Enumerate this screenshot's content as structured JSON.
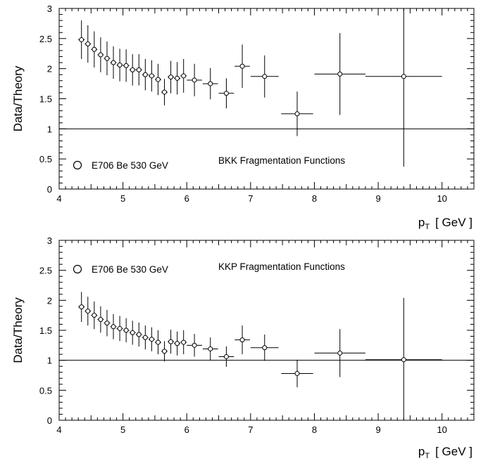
{
  "chart_data": [
    {
      "type": "scatter",
      "title": "",
      "xlabel": "",
      "ylabel": "Data/Theory",
      "x_unit_label": "p",
      "x_unit_sub": "T",
      "x_unit_text": "[ GeV ]",
      "xlim": [
        4,
        10.5
      ],
      "ylim": [
        0,
        3
      ],
      "x_ticks": [
        "4",
        "5",
        "6",
        "7",
        "8",
        "9",
        "10"
      ],
      "y_ticks": [
        "0",
        "0.5",
        "1",
        "1.5",
        "2",
        "2.5",
        "3"
      ],
      "reference_line": 1,
      "legend_label": "E706 Be 530 GeV",
      "annotation": "BKK Fragmentation Functions",
      "series": [
        {
          "points": [
            {
              "x": 4.35,
              "y": 2.48,
              "yerr": 0.32,
              "xerr": 0.05
            },
            {
              "x": 4.45,
              "y": 2.41,
              "yerr": 0.31,
              "xerr": 0.05
            },
            {
              "x": 4.55,
              "y": 2.32,
              "yerr": 0.3,
              "xerr": 0.05
            },
            {
              "x": 4.65,
              "y": 2.23,
              "yerr": 0.29,
              "xerr": 0.05
            },
            {
              "x": 4.75,
              "y": 2.17,
              "yerr": 0.28,
              "xerr": 0.05
            },
            {
              "x": 4.85,
              "y": 2.1,
              "yerr": 0.27,
              "xerr": 0.05
            },
            {
              "x": 4.95,
              "y": 2.06,
              "yerr": 0.27,
              "xerr": 0.05
            },
            {
              "x": 5.05,
              "y": 2.05,
              "yerr": 0.27,
              "xerr": 0.05
            },
            {
              "x": 5.15,
              "y": 1.98,
              "yerr": 0.26,
              "xerr": 0.05
            },
            {
              "x": 5.25,
              "y": 1.98,
              "yerr": 0.26,
              "xerr": 0.05
            },
            {
              "x": 5.35,
              "y": 1.9,
              "yerr": 0.26,
              "xerr": 0.05
            },
            {
              "x": 5.45,
              "y": 1.88,
              "yerr": 0.26,
              "xerr": 0.05
            },
            {
              "x": 5.55,
              "y": 1.82,
              "yerr": 0.26,
              "xerr": 0.05
            },
            {
              "x": 5.65,
              "y": 1.61,
              "yerr": 0.22,
              "xerr": 0.05
            },
            {
              "x": 5.75,
              "y": 1.86,
              "yerr": 0.27,
              "xerr": 0.05
            },
            {
              "x": 5.85,
              "y": 1.84,
              "yerr": 0.27,
              "xerr": 0.05
            },
            {
              "x": 5.95,
              "y": 1.88,
              "yerr": 0.28,
              "xerr": 0.05
            },
            {
              "x": 6.12,
              "y": 1.81,
              "yerr": 0.27,
              "xerr": 0.12
            },
            {
              "x": 6.37,
              "y": 1.75,
              "yerr": 0.26,
              "xerr": 0.12
            },
            {
              "x": 6.62,
              "y": 1.59,
              "yerr": 0.25,
              "xerr": 0.12
            },
            {
              "x": 6.87,
              "y": 2.04,
              "yerr": 0.36,
              "xerr": 0.12
            },
            {
              "x": 7.22,
              "y": 1.87,
              "yerr": 0.35,
              "xerr": 0.22
            },
            {
              "x": 7.73,
              "y": 1.25,
              "yerr": 0.37,
              "xerr": 0.25
            },
            {
              "x": 8.4,
              "y": 1.91,
              "yerr": 0.68,
              "xerr": 0.4
            },
            {
              "x": 9.4,
              "y": 1.87,
              "yerr": 1.5,
              "xerr": 0.6
            }
          ]
        }
      ]
    },
    {
      "type": "scatter",
      "title": "",
      "xlabel": "",
      "ylabel": "Data/Theory",
      "x_unit_label": "p",
      "x_unit_sub": "T",
      "x_unit_text": "[ GeV ]",
      "xlim": [
        4,
        10.5
      ],
      "ylim": [
        0,
        3
      ],
      "x_ticks": [
        "4",
        "5",
        "6",
        "7",
        "8",
        "9",
        "10"
      ],
      "y_ticks": [
        "0",
        "0.5",
        "1",
        "1.5",
        "2",
        "2.5",
        "3"
      ],
      "reference_line": 1,
      "legend_label": "E706 Be 530 GeV",
      "annotation": "KKP Fragmentation Functions",
      "series": [
        {
          "points": [
            {
              "x": 4.35,
              "y": 1.89,
              "yerr": 0.25,
              "xerr": 0.05
            },
            {
              "x": 4.45,
              "y": 1.82,
              "yerr": 0.24,
              "xerr": 0.05
            },
            {
              "x": 4.55,
              "y": 1.75,
              "yerr": 0.23,
              "xerr": 0.05
            },
            {
              "x": 4.65,
              "y": 1.68,
              "yerr": 0.22,
              "xerr": 0.05
            },
            {
              "x": 4.75,
              "y": 1.62,
              "yerr": 0.22,
              "xerr": 0.05
            },
            {
              "x": 4.85,
              "y": 1.56,
              "yerr": 0.21,
              "xerr": 0.05
            },
            {
              "x": 4.95,
              "y": 1.53,
              "yerr": 0.21,
              "xerr": 0.05
            },
            {
              "x": 5.05,
              "y": 1.5,
              "yerr": 0.2,
              "xerr": 0.05
            },
            {
              "x": 5.15,
              "y": 1.46,
              "yerr": 0.2,
              "xerr": 0.05
            },
            {
              "x": 5.25,
              "y": 1.43,
              "yerr": 0.2,
              "xerr": 0.05
            },
            {
              "x": 5.35,
              "y": 1.38,
              "yerr": 0.2,
              "xerr": 0.05
            },
            {
              "x": 5.45,
              "y": 1.35,
              "yerr": 0.2,
              "xerr": 0.05
            },
            {
              "x": 5.55,
              "y": 1.3,
              "yerr": 0.2,
              "xerr": 0.05
            },
            {
              "x": 5.65,
              "y": 1.15,
              "yerr": 0.17,
              "xerr": 0.05
            },
            {
              "x": 5.75,
              "y": 1.31,
              "yerr": 0.2,
              "xerr": 0.05
            },
            {
              "x": 5.85,
              "y": 1.28,
              "yerr": 0.2,
              "xerr": 0.05
            },
            {
              "x": 5.95,
              "y": 1.3,
              "yerr": 0.2,
              "xerr": 0.05
            },
            {
              "x": 6.12,
              "y": 1.25,
              "yerr": 0.19,
              "xerr": 0.12
            },
            {
              "x": 6.37,
              "y": 1.19,
              "yerr": 0.19,
              "xerr": 0.12
            },
            {
              "x": 6.62,
              "y": 1.06,
              "yerr": 0.17,
              "xerr": 0.12
            },
            {
              "x": 6.87,
              "y": 1.34,
              "yerr": 0.24,
              "xerr": 0.12
            },
            {
              "x": 7.22,
              "y": 1.21,
              "yerr": 0.22,
              "xerr": 0.22
            },
            {
              "x": 7.73,
              "y": 0.78,
              "yerr": 0.23,
              "xerr": 0.25
            },
            {
              "x": 8.4,
              "y": 1.12,
              "yerr": 0.4,
              "xerr": 0.4
            },
            {
              "x": 9.4,
              "y": 1.01,
              "yerr": 1.03,
              "xerr": 0.6
            }
          ]
        }
      ]
    }
  ]
}
